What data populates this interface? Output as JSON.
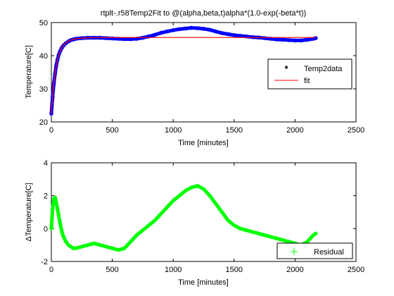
{
  "colors": {
    "temp2data": "#0000ff",
    "fit": "#ff0000",
    "residual": "#00ff00",
    "axes": "#000000",
    "background": "#ffffff"
  },
  "chart_data": [
    {
      "type": "line",
      "title": "rtplt-.r58Temp2Fit to @(alpha,beta,t)alpha*(1.0-exp(-beta*t))",
      "xlabel": "Time [minutes]",
      "ylabel": "Temperature[C]",
      "xlim": [
        0,
        2500
      ],
      "ylim": [
        20,
        50
      ],
      "xticks": [
        "0",
        "500",
        "1000",
        "1500",
        "2000",
        "2500"
      ],
      "yticks": [
        "20",
        "30",
        "40",
        "50"
      ],
      "grid": false,
      "legend_position": "right",
      "series": [
        {
          "name": "Temp2data",
          "marker": "asterisk",
          "color": "#0000ff",
          "x": [
            0,
            10,
            20,
            30,
            40,
            50,
            60,
            70,
            80,
            90,
            100,
            120,
            140,
            160,
            180,
            200,
            250,
            300,
            350,
            400,
            450,
            500,
            550,
            600,
            650,
            700,
            750,
            800,
            850,
            900,
            950,
            1000,
            1050,
            1100,
            1150,
            1200,
            1250,
            1300,
            1350,
            1400,
            1450,
            1500,
            1550,
            1600,
            1650,
            1700,
            1750,
            1800,
            1850,
            1900,
            1950,
            2000,
            2050,
            2100,
            2150,
            2170
          ],
          "y": [
            22.5,
            27.5,
            31.5,
            34.5,
            37,
            38.8,
            40.2,
            41.2,
            42,
            42.6,
            43.1,
            43.8,
            44.3,
            44.7,
            44.9,
            45.1,
            45.3,
            45.4,
            45.4,
            45.4,
            45.3,
            45.2,
            45.1,
            45,
            45,
            45.1,
            45.4,
            45.8,
            46.3,
            46.9,
            47.3,
            47.7,
            48,
            48.2,
            48.4,
            48.3,
            48.1,
            47.8,
            47.3,
            46.8,
            46.5,
            46.2,
            46,
            45.8,
            45.6,
            45.5,
            45.3,
            45.1,
            44.9,
            44.8,
            44.7,
            44.6,
            44.6,
            44.8,
            45.1,
            45.3
          ]
        },
        {
          "name": "fit",
          "marker": "none",
          "color": "#ff0000",
          "x": [
            0,
            10,
            20,
            30,
            40,
            50,
            60,
            70,
            80,
            90,
            100,
            120,
            140,
            160,
            180,
            200,
            250,
            300,
            400,
            500,
            750,
            1000,
            1500,
            2000,
            2170
          ],
          "y": [
            22.5,
            27.8,
            31.6,
            34.6,
            36.9,
            38.7,
            40.1,
            41.2,
            42,
            42.7,
            43.2,
            43.9,
            44.4,
            44.7,
            44.9,
            45.1,
            45.3,
            45.4,
            45.5,
            45.5,
            45.5,
            45.5,
            45.5,
            45.5,
            45.5
          ]
        }
      ]
    },
    {
      "type": "scatter",
      "title": "",
      "xlabel": "Time [minutes]",
      "ylabel": "ΔTemperature[C]",
      "xlim": [
        0,
        2500
      ],
      "ylim": [
        -2,
        4
      ],
      "xticks": [
        "0",
        "500",
        "1000",
        "1500",
        "2000",
        "2500"
      ],
      "yticks": [
        "-2",
        "0",
        "2",
        "4"
      ],
      "grid": false,
      "legend_position": "bottom-right",
      "series": [
        {
          "name": "Residual",
          "marker": "plus",
          "color": "#00ff00",
          "x": [
            0,
            10,
            20,
            30,
            40,
            50,
            60,
            70,
            80,
            90,
            100,
            120,
            140,
            160,
            180,
            200,
            250,
            300,
            350,
            400,
            450,
            500,
            550,
            600,
            650,
            700,
            750,
            800,
            850,
            900,
            950,
            1000,
            1050,
            1100,
            1150,
            1200,
            1250,
            1300,
            1350,
            1400,
            1450,
            1500,
            1550,
            1600,
            1650,
            1700,
            1750,
            1800,
            1850,
            1900,
            1950,
            2000,
            2050,
            2100,
            2150,
            2170
          ],
          "y": [
            0,
            1.2,
            1.8,
            1.9,
            1.6,
            1.2,
            0.8,
            0.4,
            0,
            -0.3,
            -0.5,
            -0.8,
            -1,
            -1.1,
            -1.2,
            -1.2,
            -1.1,
            -1,
            -0.9,
            -1,
            -1.1,
            -1.2,
            -1.3,
            -1.2,
            -0.8,
            -0.4,
            -0.1,
            0.2,
            0.5,
            0.9,
            1.3,
            1.7,
            2,
            2.3,
            2.5,
            2.6,
            2.4,
            2,
            1.5,
            1,
            0.5,
            0.2,
            0,
            -0.1,
            -0.2,
            -0.3,
            -0.4,
            -0.5,
            -0.6,
            -0.7,
            -0.8,
            -0.9,
            -1,
            -0.8,
            -0.4,
            -0.3
          ]
        }
      ]
    }
  ]
}
